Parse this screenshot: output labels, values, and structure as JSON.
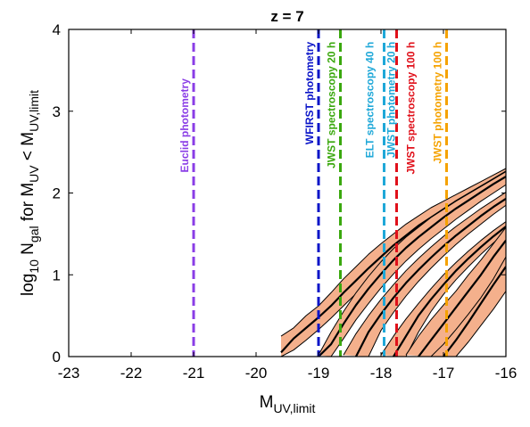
{
  "chart_data": {
    "type": "line",
    "title": "z = 7",
    "xlabel": {
      "main": "M",
      "sub": "UV,limit"
    },
    "ylabel": {
      "pre": "log",
      "pre_sub": "10",
      "mid": " N",
      "mid_sub": "gal",
      "post": " for M",
      "post_sub": "UV",
      "tail": " < M",
      "tail_sub": "UV,limit"
    },
    "xlim": [
      -23,
      -16
    ],
    "ylim": [
      0,
      4
    ],
    "xticks": [
      -23,
      -22,
      -21,
      -20,
      -19,
      -18,
      -17,
      -16
    ],
    "yticks": [
      0,
      1,
      2,
      3,
      4
    ],
    "grid": false,
    "band_color": "#f4b08c",
    "line_color": "#000000",
    "bands": [
      {
        "upper": [
          [
            -19.6,
            0.25
          ],
          [
            -19.4,
            0.35
          ],
          [
            -19.2,
            0.5
          ],
          [
            -19.0,
            0.62
          ],
          [
            -18.8,
            0.78
          ],
          [
            -18.6,
            0.95
          ],
          [
            -18.4,
            1.1
          ],
          [
            -18.2,
            1.25
          ],
          [
            -18.0,
            1.38
          ],
          [
            -17.8,
            1.5
          ],
          [
            -17.6,
            1.62
          ],
          [
            -17.4,
            1.72
          ],
          [
            -17.2,
            1.82
          ],
          [
            -17.0,
            1.9
          ],
          [
            -16.8,
            1.98
          ],
          [
            -16.6,
            2.06
          ],
          [
            -16.4,
            2.14
          ],
          [
            -16.2,
            2.22
          ],
          [
            -16.0,
            2.3
          ]
        ],
        "middle": [
          [
            -19.6,
            0.05
          ],
          [
            -19.4,
            0.22
          ],
          [
            -19.2,
            0.35
          ],
          [
            -19.0,
            0.48
          ],
          [
            -18.8,
            0.62
          ],
          [
            -18.6,
            0.78
          ],
          [
            -18.4,
            0.93
          ],
          [
            -18.2,
            1.08
          ],
          [
            -18.0,
            1.22
          ],
          [
            -17.8,
            1.36
          ],
          [
            -17.6,
            1.48
          ],
          [
            -17.4,
            1.6
          ],
          [
            -17.2,
            1.7
          ],
          [
            -17.0,
            1.8
          ],
          [
            -16.8,
            1.9
          ],
          [
            -16.6,
            1.99
          ],
          [
            -16.4,
            2.08
          ],
          [
            -16.2,
            2.17
          ],
          [
            -16.0,
            2.26
          ]
        ],
        "lower": [
          [
            -19.6,
            0.0
          ],
          [
            -19.4,
            0.08
          ],
          [
            -19.2,
            0.2
          ],
          [
            -19.0,
            0.33
          ],
          [
            -18.8,
            0.47
          ],
          [
            -18.6,
            0.62
          ],
          [
            -18.4,
            0.77
          ],
          [
            -18.2,
            0.92
          ],
          [
            -18.0,
            1.07
          ],
          [
            -17.8,
            1.22
          ],
          [
            -17.6,
            1.35
          ],
          [
            -17.4,
            1.48
          ],
          [
            -17.2,
            1.6
          ],
          [
            -17.0,
            1.71
          ],
          [
            -16.8,
            1.82
          ],
          [
            -16.6,
            1.93
          ],
          [
            -16.4,
            2.03
          ],
          [
            -16.2,
            2.13
          ],
          [
            -16.0,
            2.23
          ]
        ]
      },
      {
        "upper": [
          [
            -19.0,
            0.02
          ],
          [
            -18.8,
            0.3
          ],
          [
            -18.6,
            0.55
          ],
          [
            -18.4,
            0.78
          ],
          [
            -18.2,
            0.98
          ],
          [
            -18.0,
            1.16
          ],
          [
            -17.8,
            1.32
          ],
          [
            -17.6,
            1.46
          ],
          [
            -17.4,
            1.58
          ],
          [
            -17.2,
            1.7
          ],
          [
            -17.0,
            1.8
          ],
          [
            -16.8,
            1.9
          ],
          [
            -16.6,
            1.99
          ],
          [
            -16.4,
            2.08
          ],
          [
            -16.2,
            2.17
          ],
          [
            -16.0,
            2.26
          ]
        ],
        "middle": [
          [
            -19.0,
            0.0
          ],
          [
            -18.8,
            0.15
          ],
          [
            -18.6,
            0.4
          ],
          [
            -18.4,
            0.63
          ],
          [
            -18.2,
            0.83
          ],
          [
            -18.0,
            1.01
          ],
          [
            -17.8,
            1.18
          ],
          [
            -17.6,
            1.33
          ],
          [
            -17.4,
            1.46
          ],
          [
            -17.2,
            1.58
          ],
          [
            -17.0,
            1.7
          ],
          [
            -16.8,
            1.81
          ],
          [
            -16.6,
            1.91
          ],
          [
            -16.4,
            2.01
          ],
          [
            -16.2,
            2.11
          ],
          [
            -16.0,
            2.2
          ]
        ],
        "lower": [
          [
            -18.8,
            0.0
          ],
          [
            -18.6,
            0.22
          ],
          [
            -18.4,
            0.45
          ],
          [
            -18.2,
            0.65
          ],
          [
            -18.0,
            0.84
          ],
          [
            -17.8,
            1.01
          ],
          [
            -17.6,
            1.17
          ],
          [
            -17.4,
            1.31
          ],
          [
            -17.2,
            1.44
          ],
          [
            -17.0,
            1.56
          ],
          [
            -16.8,
            1.68
          ],
          [
            -16.6,
            1.79
          ],
          [
            -16.4,
            1.9
          ],
          [
            -16.2,
            2.0
          ],
          [
            -16.0,
            2.1
          ]
        ]
      },
      {
        "upper": [
          [
            -18.6,
            0.02
          ],
          [
            -18.4,
            0.28
          ],
          [
            -18.2,
            0.5
          ],
          [
            -18.0,
            0.7
          ],
          [
            -17.8,
            0.88
          ],
          [
            -17.6,
            1.05
          ],
          [
            -17.4,
            1.2
          ],
          [
            -17.2,
            1.34
          ],
          [
            -17.0,
            1.47
          ],
          [
            -16.8,
            1.59
          ],
          [
            -16.6,
            1.7
          ],
          [
            -16.4,
            1.81
          ],
          [
            -16.2,
            1.91
          ],
          [
            -16.0,
            2.01
          ]
        ],
        "middle": [
          [
            -18.4,
            0.0
          ],
          [
            -18.2,
            0.3
          ],
          [
            -18.0,
            0.52
          ],
          [
            -17.8,
            0.72
          ],
          [
            -17.6,
            0.9
          ],
          [
            -17.4,
            1.06
          ],
          [
            -17.2,
            1.21
          ],
          [
            -17.0,
            1.35
          ],
          [
            -16.8,
            1.48
          ],
          [
            -16.6,
            1.6
          ],
          [
            -16.4,
            1.72
          ],
          [
            -16.2,
            1.83
          ],
          [
            -16.0,
            1.93
          ]
        ],
        "lower": [
          [
            -18.2,
            0.0
          ],
          [
            -18.0,
            0.32
          ],
          [
            -17.8,
            0.54
          ],
          [
            -17.6,
            0.74
          ],
          [
            -17.4,
            0.92
          ],
          [
            -17.2,
            1.08
          ],
          [
            -17.0,
            1.23
          ],
          [
            -16.8,
            1.37
          ],
          [
            -16.6,
            1.5
          ],
          [
            -16.4,
            1.62
          ],
          [
            -16.2,
            1.74
          ],
          [
            -16.0,
            1.85
          ]
        ]
      },
      {
        "upper": [
          [
            -18.0,
            0.02
          ],
          [
            -17.8,
            0.25
          ],
          [
            -17.6,
            0.46
          ],
          [
            -17.4,
            0.65
          ],
          [
            -17.2,
            0.83
          ],
          [
            -17.0,
            1.0
          ],
          [
            -16.8,
            1.15
          ],
          [
            -16.6,
            1.29
          ],
          [
            -16.4,
            1.42
          ],
          [
            -16.2,
            1.54
          ],
          [
            -16.0,
            1.65
          ]
        ],
        "middle": [
          [
            -17.8,
            0.0
          ],
          [
            -17.6,
            0.25
          ],
          [
            -17.4,
            0.5
          ],
          [
            -17.2,
            0.7
          ],
          [
            -17.0,
            0.88
          ],
          [
            -16.8,
            1.05
          ],
          [
            -16.6,
            1.2
          ],
          [
            -16.4,
            1.34
          ],
          [
            -16.2,
            1.47
          ],
          [
            -16.0,
            1.59
          ]
        ],
        "lower": [
          [
            -17.6,
            0.0
          ],
          [
            -17.4,
            0.3
          ],
          [
            -17.2,
            0.55
          ],
          [
            -17.0,
            0.76
          ],
          [
            -16.8,
            0.94
          ],
          [
            -16.6,
            1.1
          ],
          [
            -16.4,
            1.25
          ],
          [
            -16.2,
            1.39
          ],
          [
            -16.0,
            1.52
          ]
        ]
      },
      {
        "upper": [
          [
            -17.4,
            0.0
          ],
          [
            -17.2,
            0.22
          ],
          [
            -17.0,
            0.42
          ],
          [
            -16.8,
            0.6
          ],
          [
            -16.6,
            0.77
          ],
          [
            -16.4,
            1.0
          ],
          [
            -16.2,
            1.25
          ],
          [
            -16.0,
            1.4
          ]
        ],
        "middle": [
          [
            -17.0,
            0.0
          ],
          [
            -16.8,
            0.2
          ],
          [
            -16.6,
            0.42
          ],
          [
            -16.4,
            0.65
          ],
          [
            -16.2,
            0.88
          ],
          [
            -16.0,
            1.1
          ]
        ],
        "lower": [
          [
            -16.8,
            0.0
          ],
          [
            -16.6,
            0.18
          ],
          [
            -16.4,
            0.38
          ],
          [
            -16.2,
            0.58
          ],
          [
            -16.0,
            0.8
          ]
        ]
      },
      {
        "upper": [
          [
            -17.6,
            0.02
          ],
          [
            -17.4,
            0.25
          ],
          [
            -17.2,
            0.45
          ],
          [
            -17.0,
            0.63
          ],
          [
            -16.8,
            0.8
          ],
          [
            -16.6,
            1.0
          ],
          [
            -16.4,
            1.18
          ],
          [
            -16.2,
            1.38
          ],
          [
            -16.0,
            1.58
          ]
        ],
        "middle": [
          [
            -17.4,
            0.0
          ],
          [
            -17.2,
            0.2
          ],
          [
            -17.0,
            0.4
          ],
          [
            -16.8,
            0.6
          ],
          [
            -16.6,
            0.8
          ],
          [
            -16.4,
            1.0
          ],
          [
            -16.2,
            1.22
          ],
          [
            -16.0,
            1.42
          ]
        ],
        "lower": [
          [
            -17.2,
            0.0
          ],
          [
            -17.0,
            0.15
          ],
          [
            -16.8,
            0.33
          ],
          [
            -16.6,
            0.52
          ],
          [
            -16.4,
            0.72
          ],
          [
            -16.2,
            0.95
          ],
          [
            -16.0,
            1.22
          ]
        ]
      }
    ],
    "limits": [
      {
        "x": -21.0,
        "label": "Euclid photometry",
        "color": "#8a3de6",
        "label_top_y": 3.4
      },
      {
        "x": -19.0,
        "label": "WFIRST photometry",
        "color": "#0a14c8",
        "label_top_y": 3.85
      },
      {
        "x": -18.65,
        "label": "JWST spectroscopy 20 h",
        "color": "#3aa80e",
        "label_top_y": 3.85
      },
      {
        "x": -17.95,
        "label": "ELT spectroscopy 40 h",
        "color": "#1fa8d8",
        "label_top_y": 3.85
      },
      {
        "x": -17.75,
        "label": "JWST photometry 20 h",
        "color": "#1fa8d8",
        "label_top_y": 3.85
      },
      {
        "x": -17.75,
        "label": "JWST spectroscopy 100 h",
        "color": "#e0101a",
        "label_top_y": 3.85
      },
      {
        "x": -16.95,
        "label": "JWST photometry 100 h",
        "color": "#f5a200",
        "label_top_y": 3.85
      }
    ]
  }
}
